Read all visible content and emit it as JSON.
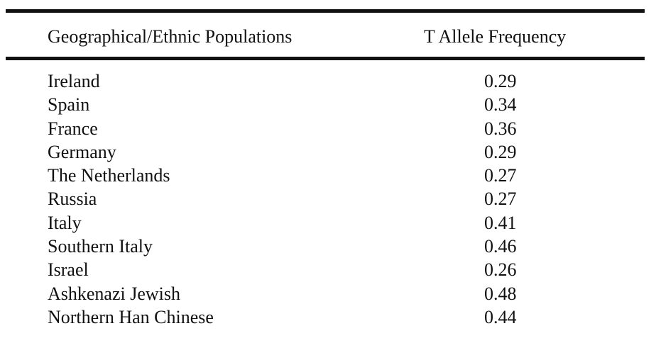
{
  "table": {
    "headers": {
      "population": "Geographical/Ethnic Populations",
      "frequency": "T Allele Frequency"
    },
    "rows": [
      {
        "population": "Ireland",
        "frequency": "0.29"
      },
      {
        "population": "Spain",
        "frequency": "0.34"
      },
      {
        "population": "France",
        "frequency": "0.36"
      },
      {
        "population": "Germany",
        "frequency": "0.29"
      },
      {
        "population": "The Netherlands",
        "frequency": "0.27"
      },
      {
        "population": "Russia",
        "frequency": "0.27"
      },
      {
        "population": "Italy",
        "frequency": "0.41"
      },
      {
        "population": "Southern Italy",
        "frequency": "0.46"
      },
      {
        "population": "Israel",
        "frequency": "0.26"
      },
      {
        "population": "Ashkenazi Jewish",
        "frequency": "0.48"
      },
      {
        "population": "Northern Han Chinese",
        "frequency": "0.44"
      }
    ]
  }
}
